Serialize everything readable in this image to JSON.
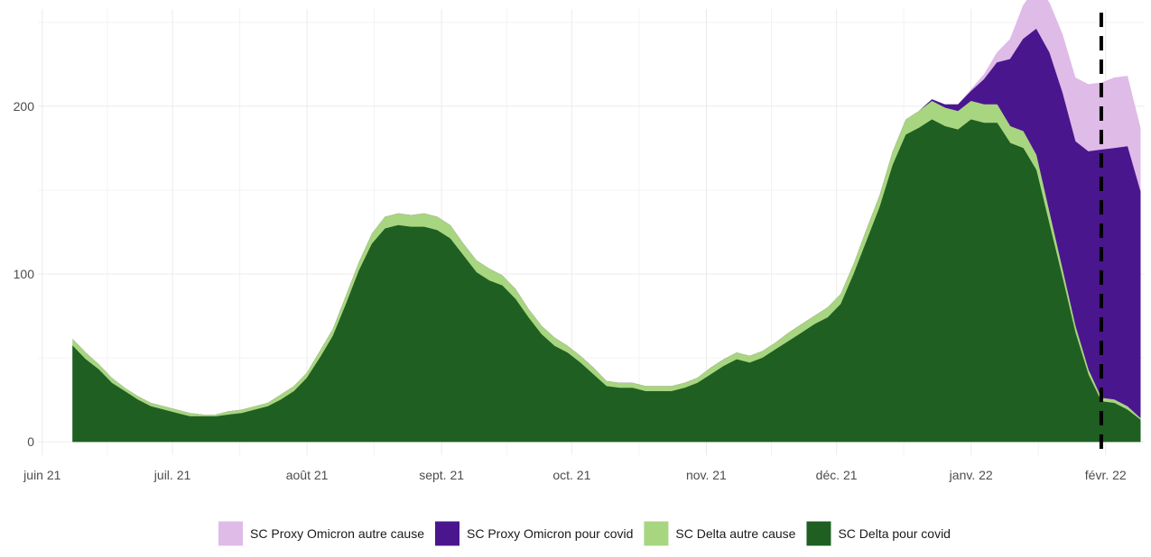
{
  "chart_data": {
    "type": "area",
    "stacked": true,
    "title": "",
    "xlabel": "",
    "ylabel": "",
    "grid": true,
    "legend_position": "bottom",
    "x_start": "2021-06-08",
    "x_step_days": 3,
    "xlim": [
      "2021-05-31",
      "2022-02-10"
    ],
    "ylim": [
      -8,
      258
    ],
    "x_ticks": [
      {
        "date": "2021-06-01",
        "label": "juin 21"
      },
      {
        "date": "2021-07-01",
        "label": "juil. 21"
      },
      {
        "date": "2021-08-01",
        "label": "août 21"
      },
      {
        "date": "2021-09-01",
        "label": "sept. 21"
      },
      {
        "date": "2021-10-01",
        "label": "oct. 21"
      },
      {
        "date": "2021-11-01",
        "label": "nov. 21"
      },
      {
        "date": "2021-12-01",
        "label": "déc. 21"
      },
      {
        "date": "2022-01-01",
        "label": "janv. 22"
      },
      {
        "date": "2022-02-01",
        "label": "févr. 22"
      }
    ],
    "y_ticks": [
      0,
      100,
      200
    ],
    "vline": {
      "date": "2022-01-31",
      "style": "dashed",
      "color": "#000000"
    },
    "series": [
      {
        "name": "SC Delta pour covid",
        "color": "#1f5f22",
        "values": [
          57,
          49,
          43,
          35,
          30,
          25,
          21,
          19,
          17,
          15,
          15,
          15,
          16,
          17,
          19,
          21,
          25,
          30,
          38,
          50,
          63,
          82,
          102,
          118,
          127,
          129,
          128,
          128,
          126,
          121,
          111,
          101,
          96,
          93,
          85,
          74,
          64,
          57,
          53,
          47,
          40,
          33,
          32,
          32,
          30,
          30,
          30,
          32,
          35,
          40,
          45,
          49,
          47,
          50,
          55,
          60,
          65,
          70,
          74,
          82,
          100,
          120,
          140,
          165,
          183,
          187,
          192,
          188,
          186,
          192,
          190,
          190,
          178,
          175,
          162,
          130,
          98,
          65,
          40,
          24,
          23,
          19,
          13
        ]
      },
      {
        "name": "SC Delta autre cause",
        "color": "#a8d580",
        "values": [
          4,
          4,
          3,
          3,
          2,
          2,
          2,
          2,
          2,
          2,
          1,
          1,
          2,
          2,
          2,
          2,
          3,
          3,
          3,
          4,
          4,
          5,
          5,
          6,
          7,
          7,
          7,
          8,
          8,
          8,
          7,
          7,
          7,
          6,
          6,
          5,
          5,
          5,
          4,
          4,
          4,
          3,
          3,
          3,
          3,
          3,
          3,
          3,
          3,
          4,
          4,
          4,
          4,
          4,
          4,
          5,
          5,
          5,
          6,
          6,
          6,
          7,
          7,
          8,
          9,
          10,
          11,
          11,
          11,
          11,
          11,
          11,
          10,
          10,
          9,
          7,
          5,
          4,
          3,
          2,
          2,
          2,
          1
        ]
      },
      {
        "name": "SC Proxy Omicron pour covid",
        "color": "#4a168e",
        "values": [
          0,
          0,
          0,
          0,
          0,
          0,
          0,
          0,
          0,
          0,
          0,
          0,
          0,
          0,
          0,
          0,
          0,
          0,
          0,
          0,
          0,
          0,
          0,
          0,
          0,
          0,
          0,
          0,
          0,
          0,
          0,
          0,
          0,
          0,
          0,
          0,
          0,
          0,
          0,
          0,
          0,
          0,
          0,
          0,
          0,
          0,
          0,
          0,
          0,
          0,
          0,
          0,
          0,
          0,
          0,
          0,
          0,
          0,
          0,
          0,
          0,
          0,
          0,
          0,
          0,
          0,
          1,
          2,
          4,
          6,
          15,
          25,
          40,
          55,
          75,
          95,
          105,
          110,
          130,
          148,
          150,
          155,
          135
        ]
      },
      {
        "name": "SC Proxy Omicron autre cause",
        "color": "#dfbbe8",
        "values": [
          0,
          0,
          0,
          0,
          0,
          0,
          0,
          0,
          0,
          0,
          0,
          0,
          0,
          0,
          0,
          0,
          0,
          0,
          0,
          0,
          0,
          0,
          0,
          0,
          0,
          0,
          0,
          0,
          0,
          0,
          0,
          0,
          0,
          0,
          0,
          0,
          0,
          0,
          0,
          0,
          0,
          0,
          0,
          0,
          0,
          0,
          0,
          0,
          0,
          0,
          0,
          0,
          0,
          0,
          0,
          0,
          0,
          0,
          0,
          0,
          0,
          0,
          0,
          0,
          0,
          0,
          0,
          0,
          0,
          1,
          3,
          6,
          12,
          20,
          25,
          30,
          35,
          38,
          40,
          40,
          42,
          42,
          38
        ]
      }
    ],
    "legend": [
      {
        "label": "SC Proxy Omicron autre cause",
        "color": "#dfbbe8"
      },
      {
        "label": "SC Proxy Omicron pour covid",
        "color": "#4a168e"
      },
      {
        "label": "SC Delta autre cause",
        "color": "#a8d580"
      },
      {
        "label": "SC Delta pour covid",
        "color": "#1f5f22"
      }
    ]
  }
}
